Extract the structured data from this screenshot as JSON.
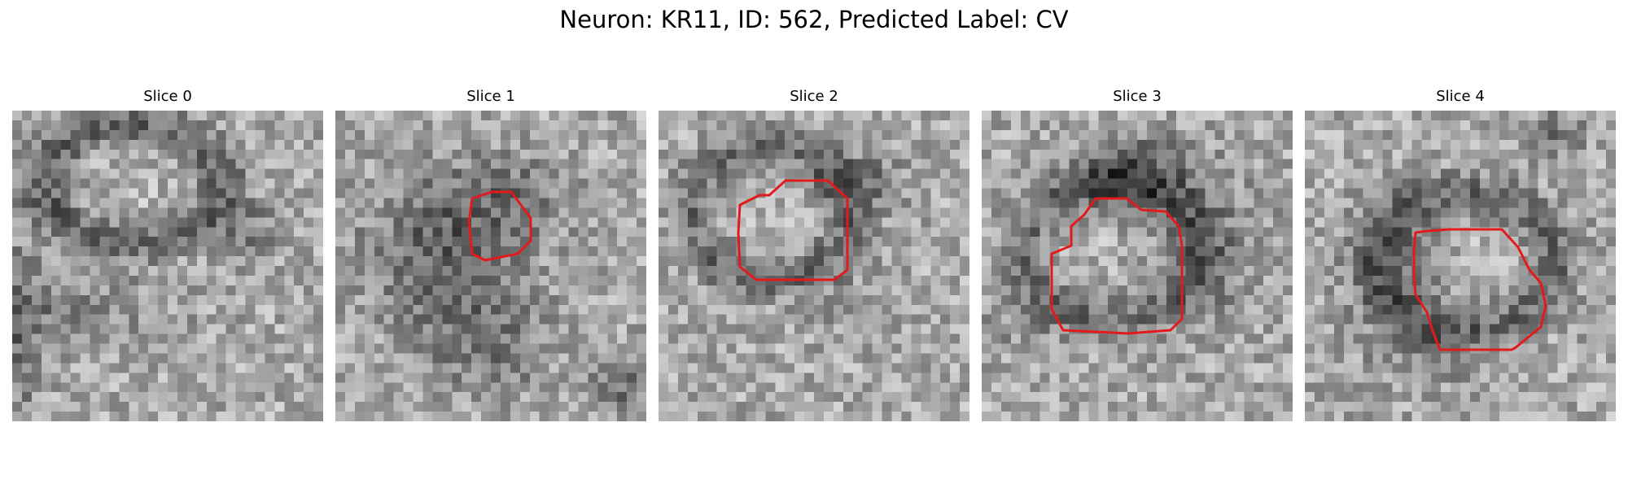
{
  "figure": {
    "title": "Neuron: KR11, ID: 562, Predicted Label: CV"
  },
  "colors": {
    "background": "#ffffff",
    "contour": "#e31a1c",
    "image_colormap": "gray"
  },
  "slices": [
    {
      "title": "Slice 0",
      "has_contour": false
    },
    {
      "title": "Slice 1",
      "has_contour": true
    },
    {
      "title": "Slice 2",
      "has_contour": true
    },
    {
      "title": "Slice 3",
      "has_contour": true
    },
    {
      "title": "Slice 4",
      "has_contour": true
    }
  ]
}
